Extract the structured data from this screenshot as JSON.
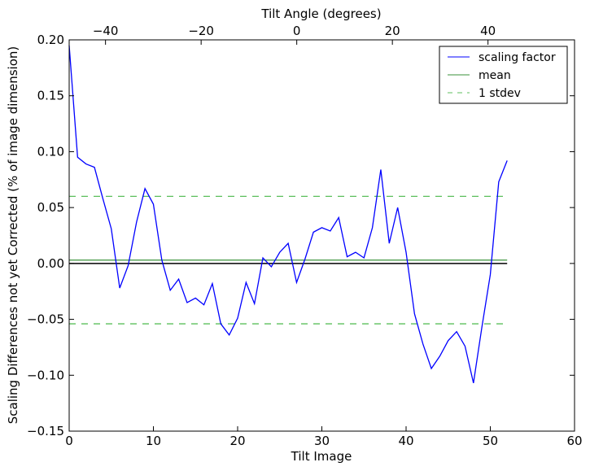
{
  "chart_data": {
    "type": "line",
    "xlabel": "Tilt Image",
    "ylabel": "Scaling Differences not yet Corrected (% of image dimension)",
    "top_xlabel": "Tilt Angle (degrees)",
    "xlim": [
      0,
      60
    ],
    "ylim": [
      -0.15,
      0.2
    ],
    "top_xlim": [
      -47.6,
      58.1
    ],
    "xticks": [
      0,
      10,
      20,
      30,
      40,
      50,
      60
    ],
    "yticks": [
      -0.15,
      -0.1,
      -0.05,
      0.0,
      0.05,
      0.1,
      0.15,
      0.2
    ],
    "ytick_labels": [
      "−0.15",
      "−0.10",
      "−0.05",
      "0.00",
      "0.05",
      "0.10",
      "0.15",
      "0.20"
    ],
    "top_xticks": [
      -40,
      -20,
      0,
      20,
      40
    ],
    "top_xtick_labels": [
      "−40",
      "−20",
      "0",
      "20",
      "40"
    ],
    "grid": false,
    "legend_position": "top-right",
    "series": [
      {
        "name": "scaling factor",
        "color": "#0000ff",
        "style": "solid",
        "x": [
          0,
          1,
          2,
          3,
          4,
          5,
          6,
          7,
          8,
          9,
          10,
          11,
          12,
          13,
          14,
          15,
          16,
          17,
          18,
          19,
          20,
          21,
          22,
          23,
          24,
          25,
          26,
          27,
          28,
          29,
          30,
          31,
          32,
          33,
          34,
          35,
          36,
          37,
          38,
          39,
          40,
          41,
          42,
          43,
          44,
          45,
          46,
          47,
          48,
          49,
          50,
          51,
          52
        ],
        "values": [
          0.195,
          0.095,
          0.089,
          0.086,
          0.058,
          0.031,
          -0.022,
          -0.002,
          0.037,
          0.067,
          0.053,
          0.003,
          -0.024,
          -0.014,
          -0.035,
          -0.031,
          -0.037,
          -0.018,
          -0.054,
          -0.064,
          -0.049,
          -0.017,
          -0.036,
          0.005,
          -0.003,
          0.01,
          0.018,
          -0.017,
          0.004,
          0.028,
          0.032,
          0.029,
          0.041,
          0.006,
          0.01,
          0.005,
          0.032,
          0.084,
          0.018,
          0.05,
          0.01,
          -0.045,
          -0.072,
          -0.094,
          -0.083,
          -0.069,
          -0.061,
          -0.074,
          -0.107,
          -0.057,
          -0.01,
          0.073,
          0.092
        ]
      },
      {
        "name": "mean",
        "color": "#3a923a",
        "style": "solid",
        "x": [
          0,
          52
        ],
        "values": [
          0.003,
          0.003
        ]
      },
      {
        "name": "1 stdev",
        "color": "#5cbf5c",
        "style": "dashed",
        "x": [
          0,
          52
        ],
        "values": [
          0.06,
          0.06
        ],
        "lower": -0.054
      }
    ],
    "zero_line": {
      "color": "#000000",
      "x": [
        0,
        52
      ],
      "value": 0
    }
  }
}
